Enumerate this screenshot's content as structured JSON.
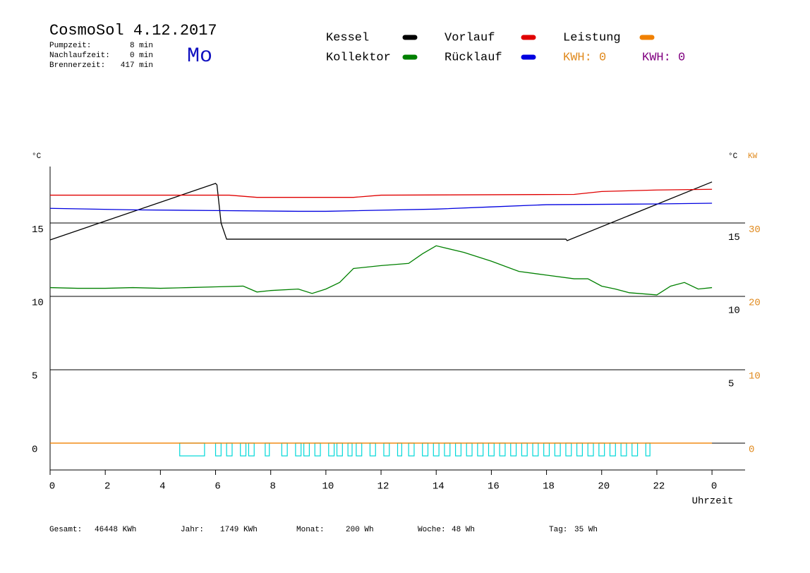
{
  "header": {
    "title": "CosmoSol 4.12.2017",
    "day": "Mo",
    "info": [
      {
        "label": "Pumpzeit:",
        "value": "8 min"
      },
      {
        "label": "Nachlaufzeit:",
        "value": "0 min"
      },
      {
        "label": "Brennerzeit:",
        "value": "417 min"
      }
    ]
  },
  "footer": [
    {
      "label": "Gesamt:",
      "value": "46448 KWh"
    },
    {
      "label": "Jahr:",
      "value": "1749 KWh"
    },
    {
      "label": "Monat:",
      "value": "200 Wh"
    },
    {
      "label": "Woche:",
      "value": "48 Wh"
    },
    {
      "label": "Tag:",
      "value": "35 Wh"
    }
  ],
  "chart_data": {
    "type": "line",
    "x_label": "Uhrzeit",
    "y_label": "°C",
    "y_right_label": "°C",
    "y2_label": "KW",
    "xlim": [
      0,
      25.2
    ],
    "xticks": [
      0,
      2,
      4,
      6,
      8,
      10,
      12,
      14,
      16,
      18,
      20,
      22,
      {
        "value": 24,
        "label": "0"
      }
    ],
    "ylim": [
      -1.83,
      18.85
    ],
    "yticks": [
      0,
      5,
      10,
      15
    ],
    "y_right_ticks": [
      5,
      10,
      15
    ],
    "y2lim": [
      -3.66,
      37.7
    ],
    "y2ticks": [
      0,
      10,
      20,
      30
    ],
    "y2_color": "#e08a1e",
    "series": [
      {
        "name": "Kessel",
        "color": "#000000",
        "x": [
          0,
          6,
          6.05,
          6.2,
          6.4,
          18.7,
          18.75,
          24
        ],
        "values": [
          13.85,
          17.7,
          17.6,
          15.0,
          13.9,
          13.9,
          13.8,
          17.8
        ]
      },
      {
        "name": "Kollektor",
        "color": "#008000",
        "x": [
          0,
          1,
          2,
          3,
          4,
          5,
          6,
          7,
          7.5,
          8,
          9,
          9.5,
          10,
          10.5,
          11,
          12,
          13,
          13.5,
          14,
          15,
          16,
          17,
          18,
          19,
          19.5,
          20,
          20.5,
          21,
          22,
          22.5,
          23,
          23.5,
          24
        ],
        "values": [
          10.6,
          10.55,
          10.55,
          10.6,
          10.55,
          10.6,
          10.65,
          10.7,
          10.3,
          10.4,
          10.5,
          10.2,
          10.5,
          10.95,
          11.9,
          12.1,
          12.25,
          12.9,
          13.45,
          13.0,
          12.4,
          11.7,
          11.45,
          11.2,
          11.2,
          10.7,
          10.5,
          10.25,
          10.1,
          10.7,
          10.95,
          10.5,
          10.6
        ]
      },
      {
        "name": "Vorlauf",
        "color": "#e00000",
        "x": [
          0,
          6.5,
          7.5,
          11,
          12,
          19,
          20,
          22,
          24
        ],
        "values": [
          16.9,
          16.9,
          16.75,
          16.75,
          16.9,
          16.95,
          17.15,
          17.25,
          17.3
        ]
      },
      {
        "name": "Rücklauf",
        "color": "#0000e0",
        "x": [
          0,
          3,
          6,
          9,
          10,
          14,
          16,
          18,
          22,
          24
        ],
        "values": [
          16.0,
          15.9,
          15.85,
          15.8,
          15.8,
          15.95,
          16.1,
          16.25,
          16.3,
          16.35
        ]
      },
      {
        "name": "Leistung",
        "color": "#f08000",
        "axis": "y2",
        "x": [
          0,
          24
        ],
        "values": [
          0,
          0
        ]
      }
    ],
    "kwh_labels": [
      {
        "text": "KWH: 0",
        "color": "#e08a1e"
      },
      {
        "text": "KWH: 0",
        "color": "#800080"
      }
    ],
    "pump": {
      "color": "#00d8d8",
      "level": -0.87,
      "intervals": [
        [
          4.7,
          5.6
        ],
        [
          6.0,
          6.2
        ],
        [
          6.4,
          6.6
        ],
        [
          6.9,
          7.1
        ],
        [
          7.2,
          7.4
        ],
        [
          7.8,
          7.95
        ],
        [
          8.4,
          8.6
        ],
        [
          8.9,
          9.1
        ],
        [
          9.2,
          9.4
        ],
        [
          9.6,
          9.8
        ],
        [
          10.1,
          10.3
        ],
        [
          10.4,
          10.6
        ],
        [
          10.8,
          10.95
        ],
        [
          11.1,
          11.3
        ],
        [
          11.6,
          11.8
        ],
        [
          12.1,
          12.3
        ],
        [
          12.6,
          12.75
        ],
        [
          13.0,
          13.2
        ],
        [
          13.5,
          13.7
        ],
        [
          13.9,
          14.1
        ],
        [
          14.3,
          14.5
        ],
        [
          14.7,
          14.9
        ],
        [
          15.1,
          15.3
        ],
        [
          15.5,
          15.7
        ],
        [
          15.9,
          16.1
        ],
        [
          16.3,
          16.5
        ],
        [
          16.7,
          16.9
        ],
        [
          17.1,
          17.3
        ],
        [
          17.5,
          17.7
        ],
        [
          17.9,
          18.1
        ],
        [
          18.3,
          18.5
        ],
        [
          18.7,
          18.9
        ],
        [
          19.1,
          19.3
        ],
        [
          19.5,
          19.7
        ],
        [
          19.9,
          20.1
        ],
        [
          20.3,
          20.5
        ],
        [
          20.7,
          20.9
        ],
        [
          21.1,
          21.3
        ],
        [
          21.6,
          21.75
        ]
      ]
    }
  }
}
